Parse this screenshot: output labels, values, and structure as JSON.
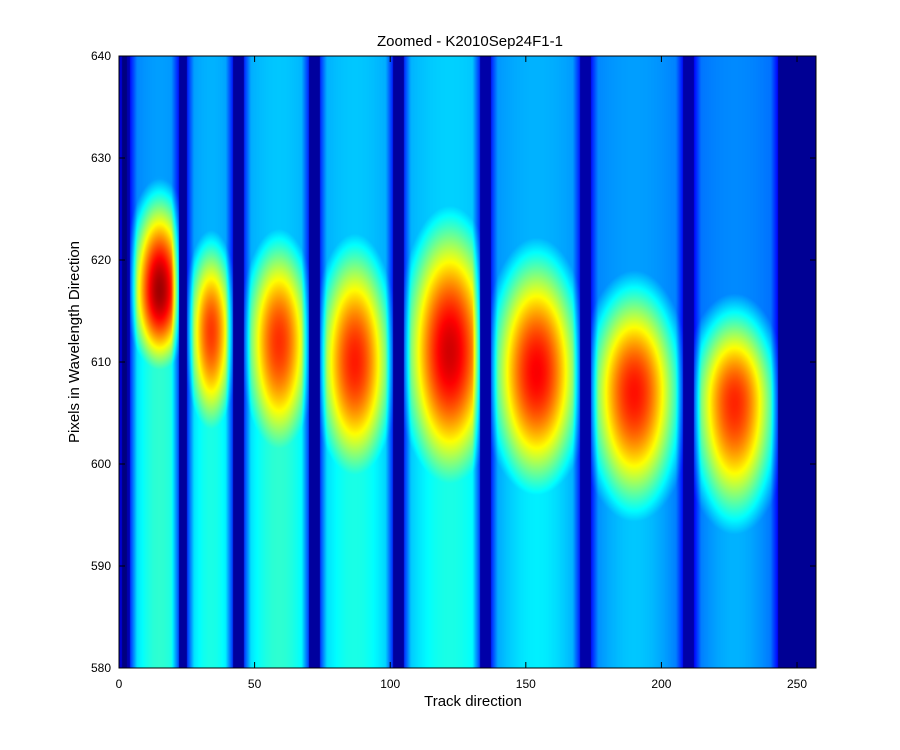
{
  "chart_data": {
    "type": "heatmap",
    "title": "Zoomed - K2010Sep24F1-1",
    "xlabel": "Track direction",
    "ylabel": "Pixels in Wavelength Direction",
    "xlim": [
      0,
      257
    ],
    "ylim": [
      580,
      640
    ],
    "xticks": [
      0,
      50,
      100,
      150,
      200,
      250
    ],
    "yticks": [
      580,
      590,
      600,
      610,
      620,
      630,
      640
    ],
    "colormap": "jet",
    "color_range": [
      0,
      1
    ],
    "background_level": 0.05,
    "band_gaps": [
      {
        "x0": 0,
        "x1": 1,
        "level": 0.08
      },
      {
        "x0": 1,
        "x1": 3,
        "level": 0.0
      },
      {
        "x0": 22,
        "x1": 25,
        "level": 0.03
      },
      {
        "x0": 42,
        "x1": 46,
        "level": 0.03
      },
      {
        "x0": 70,
        "x1": 74,
        "level": 0.03
      },
      {
        "x0": 101,
        "x1": 105,
        "level": 0.03
      },
      {
        "x0": 133,
        "x1": 137,
        "level": 0.04
      },
      {
        "x0": 170,
        "x1": 174,
        "level": 0.04
      },
      {
        "x0": 208,
        "x1": 212,
        "level": 0.04
      },
      {
        "x0": 243,
        "x1": 257,
        "level": 0.02
      }
    ],
    "bands": [
      {
        "x0": 4,
        "x1": 22,
        "center_x": 15,
        "peak_y": 617,
        "peak": 0.97,
        "sigma_up": 7,
        "sigma_down": 6,
        "width_x": 8,
        "base": 0.42,
        "tail": 0.28
      },
      {
        "x0": 25,
        "x1": 42,
        "center_x": 34,
        "peak_y": 613,
        "peak": 0.82,
        "sigma_up": 7,
        "sigma_down": 8,
        "width_x": 7,
        "base": 0.4,
        "tail": 0.3
      },
      {
        "x0": 46,
        "x1": 70,
        "center_x": 59,
        "peak_y": 612,
        "peak": 0.83,
        "sigma_up": 8,
        "sigma_down": 9,
        "width_x": 10,
        "base": 0.42,
        "tail": 0.32
      },
      {
        "x0": 74,
        "x1": 101,
        "center_x": 87,
        "peak_y": 610,
        "peak": 0.85,
        "sigma_up": 9,
        "sigma_down": 9,
        "width_x": 11,
        "base": 0.4,
        "tail": 0.32
      },
      {
        "x0": 105,
        "x1": 133,
        "center_x": 122,
        "peak_y": 611,
        "peak": 0.92,
        "sigma_up": 10,
        "sigma_down": 10,
        "width_x": 13,
        "base": 0.4,
        "tail": 0.33
      },
      {
        "x0": 137,
        "x1": 170,
        "center_x": 154,
        "peak_y": 609,
        "peak": 0.88,
        "sigma_up": 9,
        "sigma_down": 9,
        "width_x": 13,
        "base": 0.36,
        "tail": 0.3
      },
      {
        "x0": 174,
        "x1": 208,
        "center_x": 190,
        "peak_y": 607,
        "peak": 0.86,
        "sigma_up": 8,
        "sigma_down": 9,
        "width_x": 13,
        "base": 0.32,
        "tail": 0.28
      },
      {
        "x0": 212,
        "x1": 243,
        "center_x": 227,
        "peak_y": 606,
        "peak": 0.84,
        "sigma_up": 7,
        "sigma_down": 9,
        "width_x": 12,
        "base": 0.3,
        "tail": 0.26
      }
    ]
  }
}
